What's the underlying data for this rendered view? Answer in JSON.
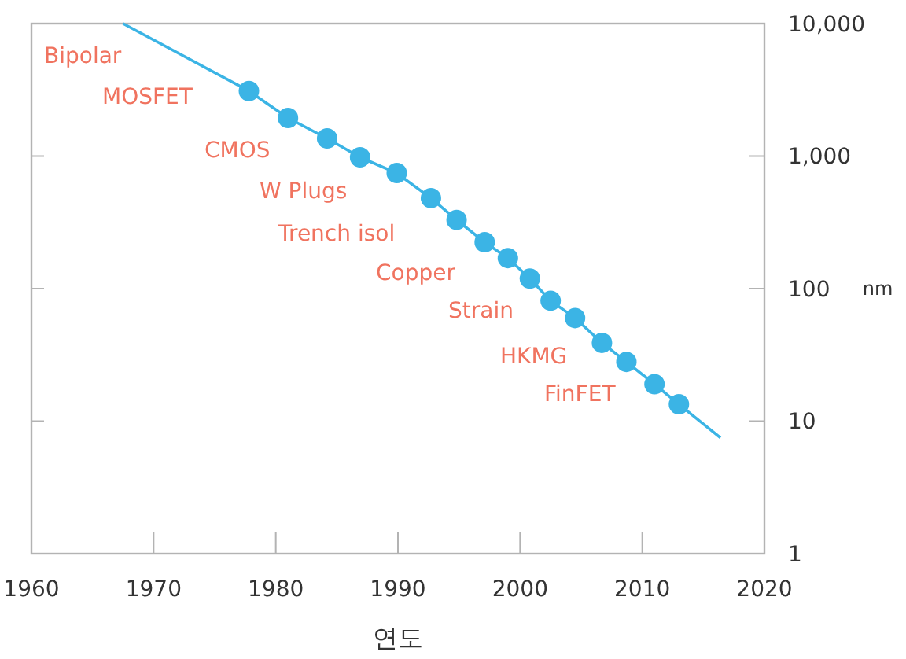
{
  "chart_data": {
    "type": "scatter",
    "xlabel": "연도",
    "ylabel": "nm",
    "log": "y",
    "grid": false,
    "marker": "circle",
    "xlim": [
      1960,
      2020
    ],
    "xticks": [
      1960,
      1970,
      1980,
      1990,
      2000,
      2010,
      2020
    ],
    "ylim": [
      1,
      10000
    ],
    "yticks": [
      {
        "value": 1,
        "label": "1"
      },
      {
        "value": 10,
        "label": "10"
      },
      {
        "value": 100,
        "label": "100"
      },
      {
        "value": 1000,
        "label": "1,000"
      },
      {
        "value": 10000,
        "label": "10,000"
      }
    ],
    "series": [
      {
        "type": "line",
        "marker": "none",
        "color": "#3bb4e5",
        "x": [
          1967.5,
          1977.8,
          1981.0,
          1984.2,
          1986.9,
          1989.9,
          1992.7,
          1994.8,
          1997.1,
          1999.0,
          2000.8,
          2002.5,
          2004.5,
          2006.7,
          2008.7,
          2011.0,
          2013.0,
          2016.4
        ],
        "values": [
          10000,
          3100,
          1940,
          1360,
          980,
          745,
          482,
          330,
          224,
          170,
          119,
          81,
          60,
          39,
          28,
          19,
          13.4,
          7.5
        ]
      },
      {
        "color": "#3bb4e5",
        "x": [
          1977.8,
          1981.0,
          1984.2,
          1986.9,
          1989.9,
          1992.7,
          1994.8,
          1997.1,
          1999.0,
          2000.8,
          2002.5,
          2004.5,
          2006.7,
          2008.7,
          2011.0,
          2013.0
        ],
        "values": [
          3100,
          1940,
          1360,
          980,
          745,
          482,
          330,
          224,
          170,
          119,
          81,
          60,
          39,
          28,
          19,
          13.4
        ]
      }
    ],
    "annotations": [
      "Bipolar",
      "MOSFET",
      "CMOS",
      "W Plugs",
      "Trench isol",
      "Copper",
      "Strain",
      "HKMG",
      "FinFET"
    ]
  }
}
